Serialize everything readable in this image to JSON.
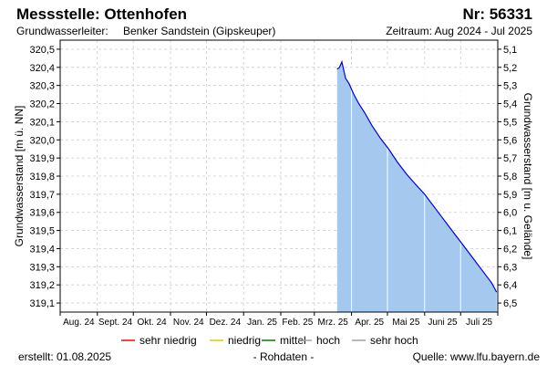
{
  "header": {
    "title": "Messstelle: Ottenhofen",
    "number": "Nr: 56331",
    "aquifer_label": "Grundwasserleiter:",
    "aquifer_value": "Benker Sandstein (Gipskeuper)",
    "period": "Zeitraum: Aug 2024 - Jul 2025"
  },
  "legend": {
    "items": [
      {
        "label": "sehr niedrig",
        "color": "#ff0000"
      },
      {
        "label": "niedrig",
        "color": "#e6c800"
      },
      {
        "label": "mittel",
        "color": "#008000"
      },
      {
        "label": "hoch",
        "color": "#a0a0a0"
      },
      {
        "label": "sehr hoch",
        "color": "#a0a0a0"
      }
    ]
  },
  "footer": {
    "created": "erstellt:  01.08.2025",
    "rawdata": "- Rohdaten -",
    "source": "Quelle: www.lfu.bayern.de"
  },
  "colors": {
    "fill": "#a4c8ee",
    "line": "#0000cc",
    "grid": "#cccccc",
    "vline": "#ffffff"
  },
  "chart_data": {
    "type": "area",
    "ylabel_left": "Grundwasserstand [m ü. NN]",
    "ylabel_right": "Grundwasserstand [m u. Gelände]",
    "ylim_left": [
      319.05,
      320.55
    ],
    "ylim_right": [
      6.55,
      5.05
    ],
    "yticks_left": [
      "320,5",
      "320,4",
      "320,3",
      "320,2",
      "320,1",
      "320,0",
      "319,9",
      "319,8",
      "319,7",
      "319,6",
      "319,5",
      "319,4",
      "319,3",
      "319,2",
      "319,1"
    ],
    "yticks_right": [
      "5,1",
      "5,2",
      "5,3",
      "5,4",
      "5,5",
      "5,6",
      "5,7",
      "5,8",
      "5,9",
      "6,0",
      "6,1",
      "6,2",
      "6,3",
      "6,4",
      "6,5"
    ],
    "x_categories": [
      "Aug. 24",
      "Sept. 24",
      "Okt. 24",
      "Nov. 24",
      "Dez. 24",
      "Jan. 25",
      "Feb. 25",
      "Mrz. 25",
      "Apr. 25",
      "Mai 25",
      "Juni 25",
      "Juli 25"
    ],
    "grid": true,
    "series": [
      {
        "x": [
          "2025-03-20",
          "2025-03-22",
          "2025-03-24",
          "2025-03-27",
          "2025-03-30",
          "2025-04-03",
          "2025-04-07",
          "2025-04-12",
          "2025-04-18",
          "2025-04-25",
          "2025-05-02",
          "2025-05-09",
          "2025-05-17",
          "2025-05-25",
          "2025-06-01",
          "2025-06-09",
          "2025-06-17",
          "2025-06-25",
          "2025-07-03",
          "2025-07-11",
          "2025-07-19",
          "2025-07-27",
          "2025-07-31"
        ],
        "y": [
          320.39,
          320.4,
          320.43,
          320.34,
          320.31,
          320.25,
          320.2,
          320.15,
          320.08,
          320.01,
          319.95,
          319.88,
          319.81,
          319.75,
          319.7,
          319.63,
          319.56,
          319.49,
          319.42,
          319.35,
          319.28,
          319.21,
          319.16
        ]
      }
    ]
  }
}
